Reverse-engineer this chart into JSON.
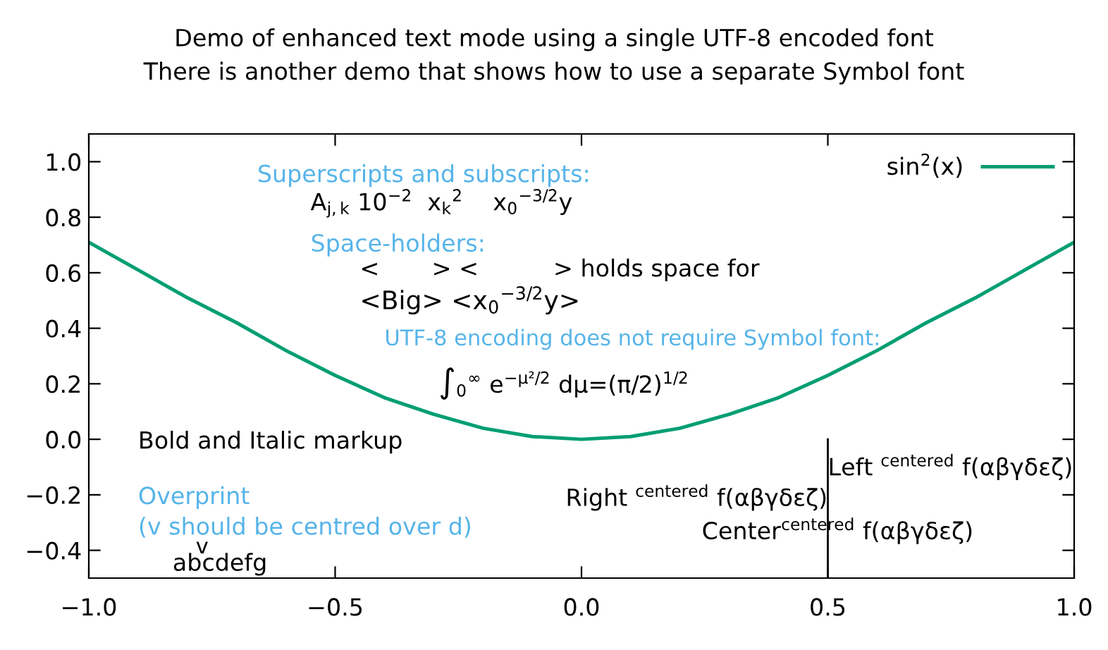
{
  "chart_data": {
    "type": "line",
    "title": "Demo of enhanced text mode using a single UTF-8 encoded font\nThere is another demo that shows how to use a separate Symbol font",
    "series": [
      {
        "name": "sin$^{2}$(x)",
        "color": "#009e73",
        "x": [
          -1.0,
          -0.9,
          -0.8,
          -0.7,
          -0.6,
          -0.5,
          -0.4,
          -0.3,
          -0.2,
          -0.1,
          0.0,
          0.1,
          0.2,
          0.3,
          0.4,
          0.5,
          0.6,
          0.7,
          0.8,
          0.9,
          1.0
        ],
        "values": [
          0.71,
          0.61,
          0.51,
          0.42,
          0.32,
          0.23,
          0.15,
          0.09,
          0.04,
          0.01,
          0.0,
          0.01,
          0.04,
          0.09,
          0.15,
          0.23,
          0.32,
          0.42,
          0.51,
          0.61,
          0.71
        ]
      },
      {
        "color": "#000000",
        "x": [
          0.5,
          0.5
        ],
        "values": [
          -0.5,
          0.0
        ]
      }
    ],
    "xlim": [
      -1.0,
      1.0
    ],
    "xticks": [
      {
        "value": -1.0,
        "label": "−1.0"
      },
      {
        "value": -0.5,
        "label": "−0.5"
      },
      {
        "value": 0.0,
        "label": "0.0"
      },
      {
        "value": 0.5,
        "label": "0.5"
      },
      {
        "value": 1.0,
        "label": "1.0"
      }
    ],
    "ylim": [
      -0.5,
      1.1
    ],
    "yticks": [
      {
        "value": -0.4,
        "label": "−0.4"
      },
      {
        "value": -0.2,
        "label": "−0.2"
      },
      {
        "value": 0.0,
        "label": "0.0"
      },
      {
        "value": 0.2,
        "label": "0.2"
      },
      {
        "value": 0.4,
        "label": "0.4"
      },
      {
        "value": 0.6,
        "label": "0.6"
      },
      {
        "value": 0.8,
        "label": "0.8"
      },
      {
        "value": 1.0,
        "label": "1.0"
      }
    ],
    "legend": "top right",
    "grid": false,
    "annotations": [
      "Superscripts and subscripts:",
      "A$_{j,k}$ 10$^{−2}$  x$_{k}$$^{2}$    x$_{0}$$^{−3/2}$y",
      "Space-holders:",
      "<       > <          > holds space for",
      "<Big> <x$_{0}$$^{−3/2}$y>",
      "UTF-8 encoding does not require Symbol font:",
      "∫$_{0}$$^{∞}$ e$^{−μ²/2}$ dμ=(π/2)$^{1/2}$",
      "Bold and Italic markup",
      "Overprint",
      "(v should be centred over d)",
      "abcdefg",
      "v",
      "Right $^{centered}$ f(αβγδεζ)",
      "Center$^{centered}$ f(αβγδεζ)",
      "Left $^{centered}$ f(αβγδεζ)"
    ]
  }
}
